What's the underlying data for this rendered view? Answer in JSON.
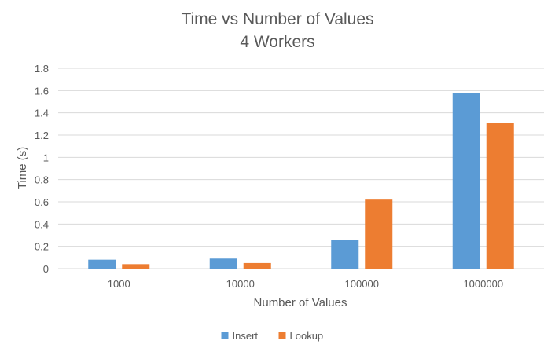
{
  "chart_data": {
    "type": "bar",
    "title": "Time vs Number of Values",
    "subtitle": "4 Workers",
    "xlabel": "Number of Values",
    "ylabel": "Time (s)",
    "categories": [
      "1000",
      "10000",
      "100000",
      "1000000"
    ],
    "series": [
      {
        "name": "Insert",
        "color": "#5b9bd5",
        "values": [
          0.08,
          0.09,
          0.26,
          1.58
        ]
      },
      {
        "name": "Lookup",
        "color": "#ed7d31",
        "values": [
          0.04,
          0.05,
          0.62,
          1.31
        ]
      }
    ],
    "ylim": [
      0,
      1.8
    ],
    "yticks": [
      "0",
      "0.2",
      "0.4",
      "0.6",
      "0.8",
      "1",
      "1.2",
      "1.4",
      "1.6",
      "1.8"
    ],
    "grid": true,
    "legend_position": "bottom"
  }
}
